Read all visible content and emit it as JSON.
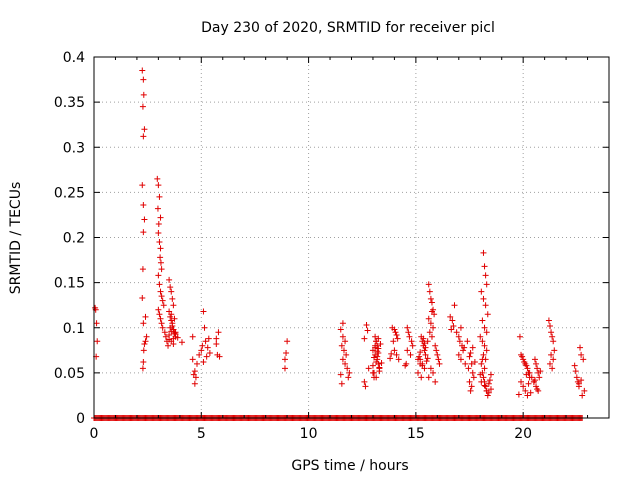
{
  "chart_data": {
    "type": "scatter",
    "title": "Day 230 of 2020, SRMTID for receiver picl",
    "xlabel": "GPS time / hours",
    "ylabel": "SRMTID / TECUs",
    "xlim": [
      0,
      24
    ],
    "ylim": [
      0,
      0.4
    ],
    "x_ticks": [
      0,
      5,
      10,
      15,
      20
    ],
    "x_tick_labels": [
      "0",
      "5",
      "10",
      "15",
      "20"
    ],
    "y_ticks": [
      0,
      0.05,
      0.1,
      0.15,
      0.2,
      0.25,
      0.3,
      0.35,
      0.4
    ],
    "y_tick_labels": [
      "0",
      "0.05",
      "0.1",
      "0.15",
      "0.2",
      "0.25",
      "0.3",
      "0.35",
      "0.4"
    ],
    "grid": true,
    "marker": "plus",
    "series": [
      {
        "name": "SRMTID",
        "color": "#e00000",
        "x": [
          0.08,
          0.12,
          0.15,
          0.1,
          0.05,
          2.25,
          2.3,
          2.32,
          2.28,
          2.35,
          2.3,
          2.25,
          2.3,
          2.35,
          2.3,
          2.28,
          2.25,
          2.3,
          2.35,
          2.32,
          2.3,
          2.28,
          2.4,
          2.45,
          2.4,
          2.95,
          3.0,
          3.05,
          2.98,
          3.1,
          3.02,
          3.0,
          3.05,
          3.1,
          3.08,
          3.12,
          3.15,
          3.0,
          3.05,
          3.1,
          3.15,
          3.2,
          3.25,
          3.0,
          3.05,
          3.1,
          3.15,
          3.2,
          3.3,
          3.35,
          3.4,
          3.45,
          3.5,
          3.55,
          3.6,
          3.65,
          3.7,
          3.5,
          3.55,
          3.6,
          3.65,
          3.7,
          3.75,
          3.8,
          3.5,
          3.6,
          3.7,
          3.8,
          3.55,
          3.65,
          3.75,
          3.6,
          3.7,
          3.5,
          3.6,
          3.7,
          3.8,
          3.9,
          4.1,
          4.6,
          4.7,
          4.65,
          4.75,
          4.7,
          4.8,
          4.6,
          4.9,
          5.0,
          5.05,
          5.1,
          5.15,
          5.2,
          5.3,
          5.4,
          5.25,
          5.35,
          5.1,
          5.7,
          5.75,
          5.8,
          5.7,
          5.85,
          8.9,
          8.95,
          9.0,
          8.9,
          11.5,
          11.55,
          11.6,
          11.5,
          11.6,
          11.7,
          11.55,
          11.65,
          11.75,
          11.6,
          11.7,
          11.8,
          11.9,
          11.85,
          12.6,
          12.65,
          12.7,
          12.75,
          12.6,
          12.8,
          13.0,
          13.05,
          13.1,
          13.15,
          13.2,
          13.0,
          13.1,
          13.2,
          13.25,
          13.3,
          13.05,
          13.15,
          13.25,
          13.1,
          13.2,
          13.0,
          13.3,
          13.35,
          13.25,
          13.15,
          13.05,
          13.2,
          13.1,
          13.3,
          13.4,
          13.15,
          13.25,
          13.8,
          13.85,
          13.9,
          14.0,
          14.05,
          14.1,
          14.15,
          13.95,
          14.0,
          14.1,
          14.2,
          14.5,
          14.55,
          14.6,
          14.65,
          14.7,
          14.8,
          14.85,
          14.6,
          14.75,
          15.1,
          15.2,
          15.25,
          15.3,
          15.35,
          15.4,
          15.45,
          15.2,
          15.3,
          15.4,
          15.1,
          15.25,
          15.35,
          15.45,
          15.15,
          15.3,
          15.4,
          15.2,
          15.5,
          15.55,
          15.6,
          15.65,
          15.7,
          15.75,
          15.8,
          15.85,
          15.6,
          15.7,
          15.8,
          15.65,
          15.75,
          15.55,
          15.9,
          15.95,
          16.0,
          16.05,
          16.1,
          15.7,
          15.8,
          15.6,
          15.9,
          15.75,
          16.6,
          16.7,
          16.75,
          16.8,
          16.65,
          16.9,
          17.0,
          17.05,
          17.1,
          17.15,
          17.2,
          17.0,
          17.1,
          17.3,
          17.4,
          17.25,
          17.5,
          17.55,
          17.6,
          17.65,
          17.7,
          17.5,
          17.6,
          17.55,
          17.65,
          17.75,
          17.45,
          18.0,
          18.05,
          18.1,
          18.15,
          18.2,
          18.25,
          18.3,
          18.05,
          18.15,
          18.25,
          18.35,
          18.1,
          18.2,
          18.3,
          18.0,
          18.1,
          18.2,
          18.3,
          18.15,
          18.25,
          18.05,
          18.2,
          18.1,
          18.15,
          18.2,
          18.25,
          18.3,
          18.35,
          18.4,
          18.45,
          18.5,
          18.2,
          18.3,
          18.4,
          18.5,
          19.8,
          19.85,
          19.9,
          19.95,
          20.0,
          20.05,
          20.1,
          20.15,
          20.2,
          20.25,
          20.3,
          19.9,
          20.0,
          20.1,
          20.2,
          20.3,
          20.4,
          20.5,
          20.55,
          20.6,
          20.65,
          20.7,
          20.75,
          20.5,
          20.6,
          20.7,
          20.8,
          20.55,
          20.65,
          20.05,
          20.15,
          20.25,
          20.35,
          21.2,
          21.25,
          21.3,
          21.35,
          21.4,
          21.45,
          21.3,
          21.4,
          21.25,
          21.35,
          22.4,
          22.45,
          22.5,
          22.55,
          22.6,
          22.65,
          22.7,
          22.8,
          22.85,
          22.75,
          22.6,
          22.7
        ],
        "y": [
          0.12,
          0.105,
          0.085,
          0.068,
          0.122,
          0.385,
          0.375,
          0.358,
          0.345,
          0.32,
          0.312,
          0.258,
          0.236,
          0.22,
          0.206,
          0.165,
          0.133,
          0.105,
          0.082,
          0.075,
          0.062,
          0.055,
          0.112,
          0.09,
          0.085,
          0.265,
          0.258,
          0.245,
          0.232,
          0.222,
          0.215,
          0.205,
          0.195,
          0.188,
          0.178,
          0.172,
          0.165,
          0.158,
          0.148,
          0.14,
          0.135,
          0.13,
          0.125,
          0.12,
          0.115,
          0.11,
          0.105,
          0.1,
          0.095,
          0.09,
          0.085,
          0.08,
          0.153,
          0.145,
          0.14,
          0.132,
          0.125,
          0.118,
          0.112,
          0.108,
          0.102,
          0.098,
          0.094,
          0.09,
          0.087,
          0.085,
          0.082,
          0.095,
          0.1,
          0.105,
          0.11,
          0.115,
          0.088,
          0.092,
          0.096,
          0.098,
          0.093,
          0.089,
          0.084,
          0.09,
          0.038,
          0.048,
          0.045,
          0.052,
          0.06,
          0.065,
          0.07,
          0.075,
          0.08,
          0.118,
          0.1,
          0.085,
          0.078,
          0.072,
          0.068,
          0.088,
          0.062,
          0.082,
          0.07,
          0.095,
          0.088,
          0.068,
          0.065,
          0.072,
          0.085,
          0.055,
          0.048,
          0.038,
          0.105,
          0.098,
          0.09,
          0.085,
          0.08,
          0.075,
          0.07,
          0.065,
          0.06,
          0.055,
          0.05,
          0.045,
          0.04,
          0.035,
          0.103,
          0.097,
          0.088,
          0.055,
          0.05,
          0.045,
          0.09,
          0.085,
          0.08,
          0.075,
          0.07,
          0.065,
          0.06,
          0.055,
          0.05,
          0.045,
          0.088,
          0.078,
          0.068,
          0.058,
          0.052,
          0.082,
          0.072,
          0.062,
          0.067,
          0.074,
          0.08,
          0.056,
          0.061,
          0.085,
          0.077,
          0.066,
          0.071,
          0.1,
          0.098,
          0.095,
          0.092,
          0.088,
          0.085,
          0.075,
          0.07,
          0.065,
          0.058,
          0.06,
          0.1,
          0.095,
          0.09,
          0.085,
          0.08,
          0.075,
          0.07,
          0.065,
          0.06,
          0.09,
          0.085,
          0.08,
          0.075,
          0.07,
          0.065,
          0.06,
          0.055,
          0.05,
          0.045,
          0.088,
          0.078,
          0.068,
          0.058,
          0.083,
          0.073,
          0.063,
          0.066,
          0.148,
          0.14,
          0.132,
          0.128,
          0.12,
          0.115,
          0.11,
          0.105,
          0.1,
          0.095,
          0.09,
          0.085,
          0.08,
          0.075,
          0.07,
          0.065,
          0.06,
          0.055,
          0.05,
          0.045,
          0.04,
          0.118,
          0.112,
          0.108,
          0.102,
          0.125,
          0.098,
          0.095,
          0.09,
          0.085,
          0.1,
          0.08,
          0.075,
          0.07,
          0.065,
          0.06,
          0.085,
          0.078,
          0.068,
          0.072,
          0.06,
          0.05,
          0.045,
          0.04,
          0.035,
          0.03,
          0.078,
          0.062,
          0.055,
          0.048,
          0.04,
          0.065,
          0.183,
          0.168,
          0.158,
          0.148,
          0.14,
          0.132,
          0.125,
          0.115,
          0.108,
          0.1,
          0.095,
          0.09,
          0.085,
          0.08,
          0.075,
          0.07,
          0.065,
          0.06,
          0.055,
          0.05,
          0.045,
          0.04,
          0.035,
          0.03,
          0.025,
          0.038,
          0.042,
          0.048,
          0.036,
          0.03,
          0.028,
          0.032,
          0.026,
          0.09,
          0.07,
          0.068,
          0.065,
          0.062,
          0.06,
          0.058,
          0.055,
          0.05,
          0.045,
          0.04,
          0.035,
          0.03,
          0.025,
          0.05,
          0.045,
          0.04,
          0.065,
          0.06,
          0.055,
          0.05,
          0.045,
          0.04,
          0.035,
          0.03,
          0.052,
          0.042,
          0.032,
          0.062,
          0.048,
          0.038,
          0.028,
          0.108,
          0.102,
          0.095,
          0.09,
          0.085,
          0.075,
          0.07,
          0.065,
          0.06,
          0.055,
          0.058,
          0.052,
          0.045,
          0.04,
          0.035,
          0.078,
          0.07,
          0.065,
          0.03,
          0.025,
          0.038,
          0.042
        ]
      }
    ]
  }
}
